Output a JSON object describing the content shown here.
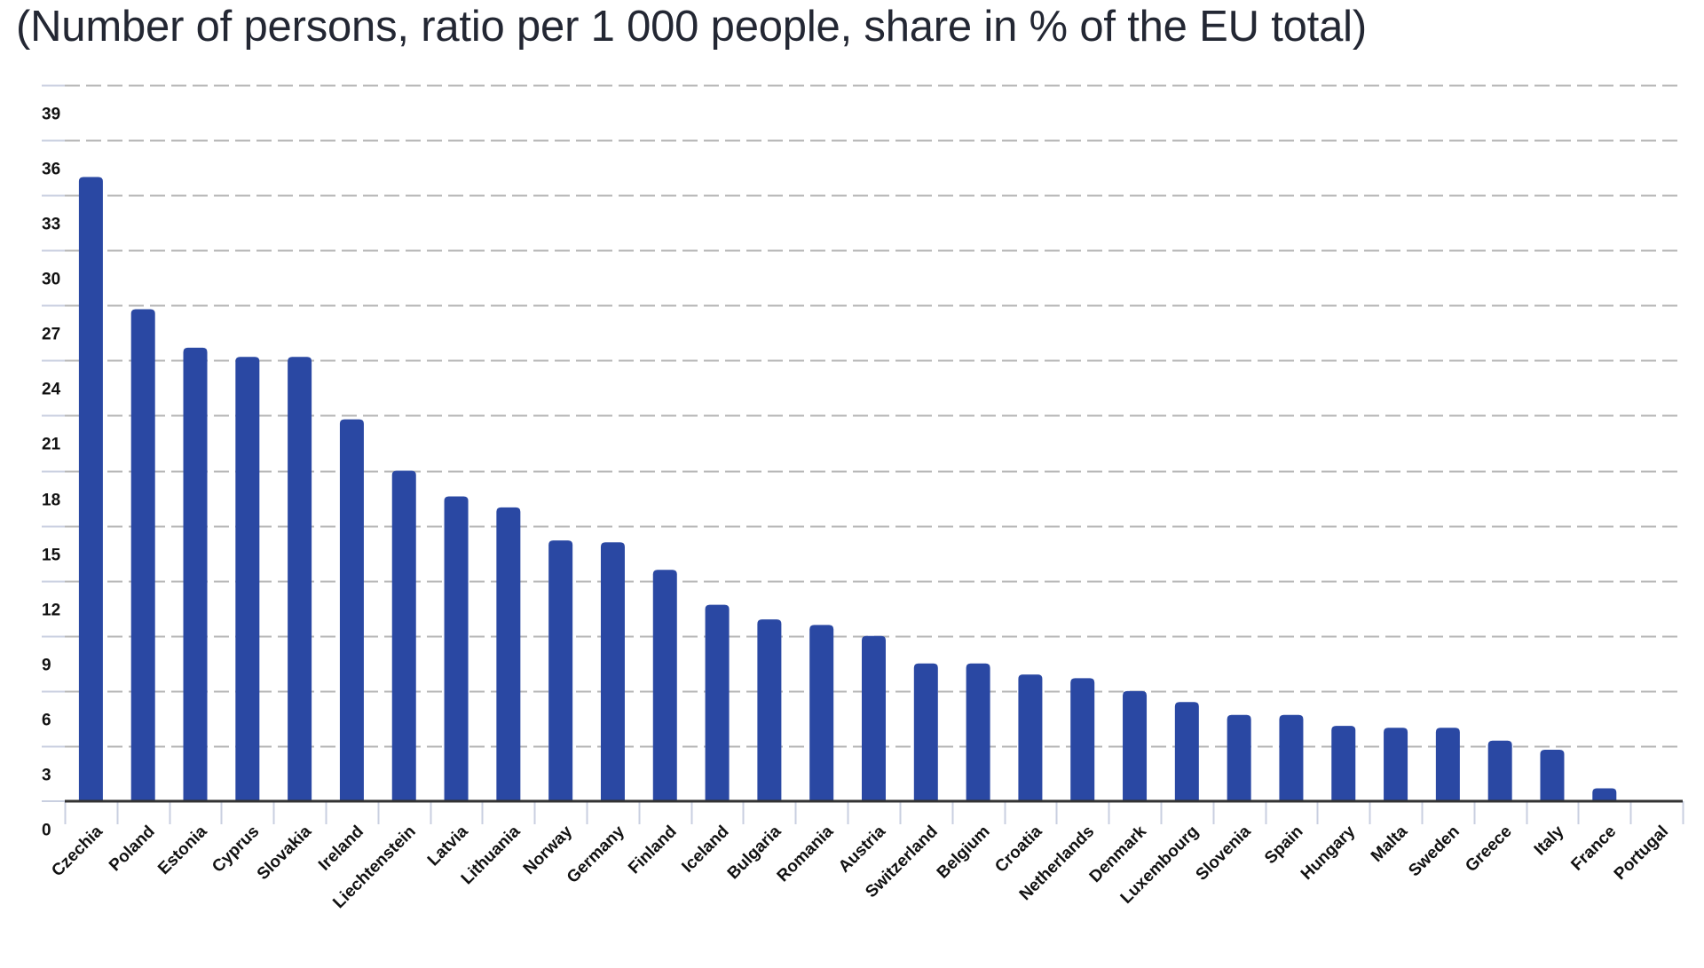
{
  "chart_data": {
    "type": "bar",
    "title": "(Number of persons, ratio per 1 000 people, share in % of the EU total)",
    "xlabel": "",
    "ylabel": "",
    "ylim": [
      0,
      39
    ],
    "yticks": [
      0,
      3,
      6,
      9,
      12,
      15,
      18,
      21,
      24,
      27,
      30,
      33,
      36,
      39
    ],
    "grid": true,
    "legend": "none",
    "categories": [
      "Czechia",
      "Poland",
      "Estonia",
      "Cyprus",
      "Slovakia",
      "Ireland",
      "Liechtenstein",
      "Latvia",
      "Lithuania",
      "Norway",
      "Germany",
      "Finland",
      "Iceland",
      "Bulgaria",
      "Romania",
      "Austria",
      "Switzerland",
      "Belgium",
      "Croatia",
      "Netherlands",
      "Denmark",
      "Luxembourg",
      "Slovenia",
      "Spain",
      "Hungary",
      "Malta",
      "Sweden",
      "Greece",
      "Italy",
      "France",
      "Portugal"
    ],
    "values": [
      34.0,
      26.8,
      24.7,
      24.2,
      24.2,
      20.8,
      18.0,
      16.6,
      16.0,
      14.2,
      14.1,
      12.6,
      10.7,
      9.9,
      9.6,
      9.0,
      7.5,
      7.5,
      6.9,
      6.7,
      6.0,
      5.4,
      4.7,
      4.7,
      4.1,
      4.0,
      4.0,
      3.3,
      2.8,
      0.7,
      0.0
    ],
    "colors": {
      "bar": "#2a48a3",
      "grid": "#b5b5b5",
      "axis": "#333333",
      "tick": "#c9cfe0",
      "text": "#111111",
      "title": "#232733"
    }
  }
}
